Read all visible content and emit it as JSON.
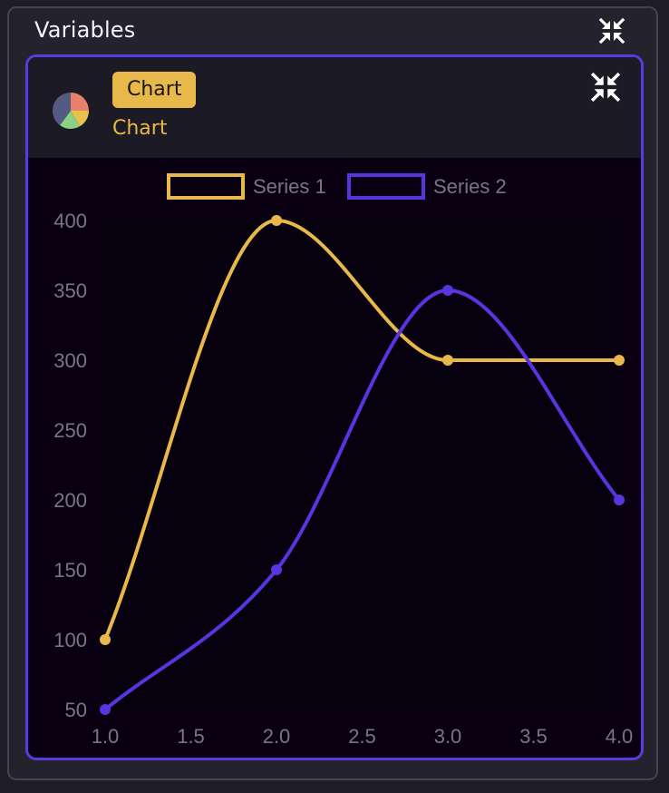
{
  "panel": {
    "title": "Variables"
  },
  "card": {
    "badge": "Chart",
    "subtitle": "Chart"
  },
  "icons": {
    "panel_collapse": "collapse-arrows-icon",
    "card_collapse": "collapse-arrows-icon",
    "card_type": "pie-chart-icon"
  },
  "colors": {
    "series1": "#e8b84a",
    "series2": "#5a34e0",
    "card_border": "#5a3be0",
    "background": "#090112"
  },
  "chart_data": {
    "type": "line",
    "curve": "smooth",
    "x": [
      1.0,
      2.0,
      3.0,
      4.0
    ],
    "series": [
      {
        "name": "Series 1",
        "values": [
          100,
          400,
          300,
          300
        ]
      },
      {
        "name": "Series 2",
        "values": [
          50,
          150,
          350,
          200
        ]
      }
    ],
    "xlim": [
      1.0,
      4.0
    ],
    "ylim": [
      50,
      400
    ],
    "x_ticks": [
      "1.0",
      "1.5",
      "2.0",
      "2.5",
      "3.0",
      "3.5",
      "4.0"
    ],
    "y_ticks": [
      "400",
      "350",
      "300",
      "250",
      "200",
      "150",
      "100",
      "50"
    ],
    "legend_position": "top-center",
    "grid": false
  }
}
